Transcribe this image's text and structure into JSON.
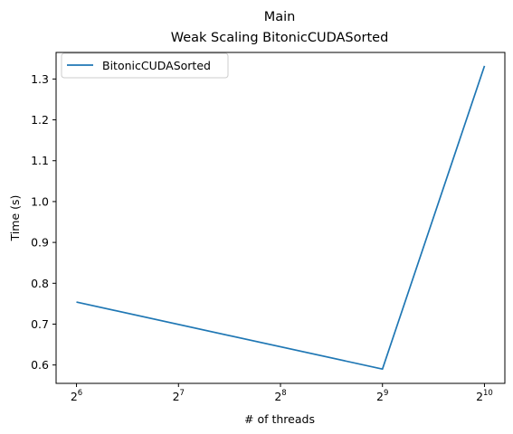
{
  "chart_data": {
    "type": "line",
    "title": "Main",
    "subtitle": "Weak Scaling BitonicCUDASorted",
    "xlabel": "# of threads",
    "ylabel": "Time (s)",
    "x_scale": "log2",
    "x": [
      64,
      512,
      1024
    ],
    "x_ticks": [
      {
        "value": 64,
        "base": "2",
        "exp": "6"
      },
      {
        "value": 128,
        "base": "2",
        "exp": "7"
      },
      {
        "value": 256,
        "base": "2",
        "exp": "8"
      },
      {
        "value": 512,
        "base": "2",
        "exp": "9"
      },
      {
        "value": 1024,
        "base": "2",
        "exp": "10"
      }
    ],
    "y_ticks": [
      "0.6",
      "0.7",
      "0.8",
      "0.9",
      "1.0",
      "1.1",
      "1.2",
      "1.3"
    ],
    "ylim": [
      0.555,
      1.365
    ],
    "grid": false,
    "legend_position": "top-left",
    "series": [
      {
        "name": "BitonicCUDASorted",
        "color": "#1f77b4",
        "values": [
          0.754,
          0.59,
          1.332
        ]
      }
    ]
  }
}
